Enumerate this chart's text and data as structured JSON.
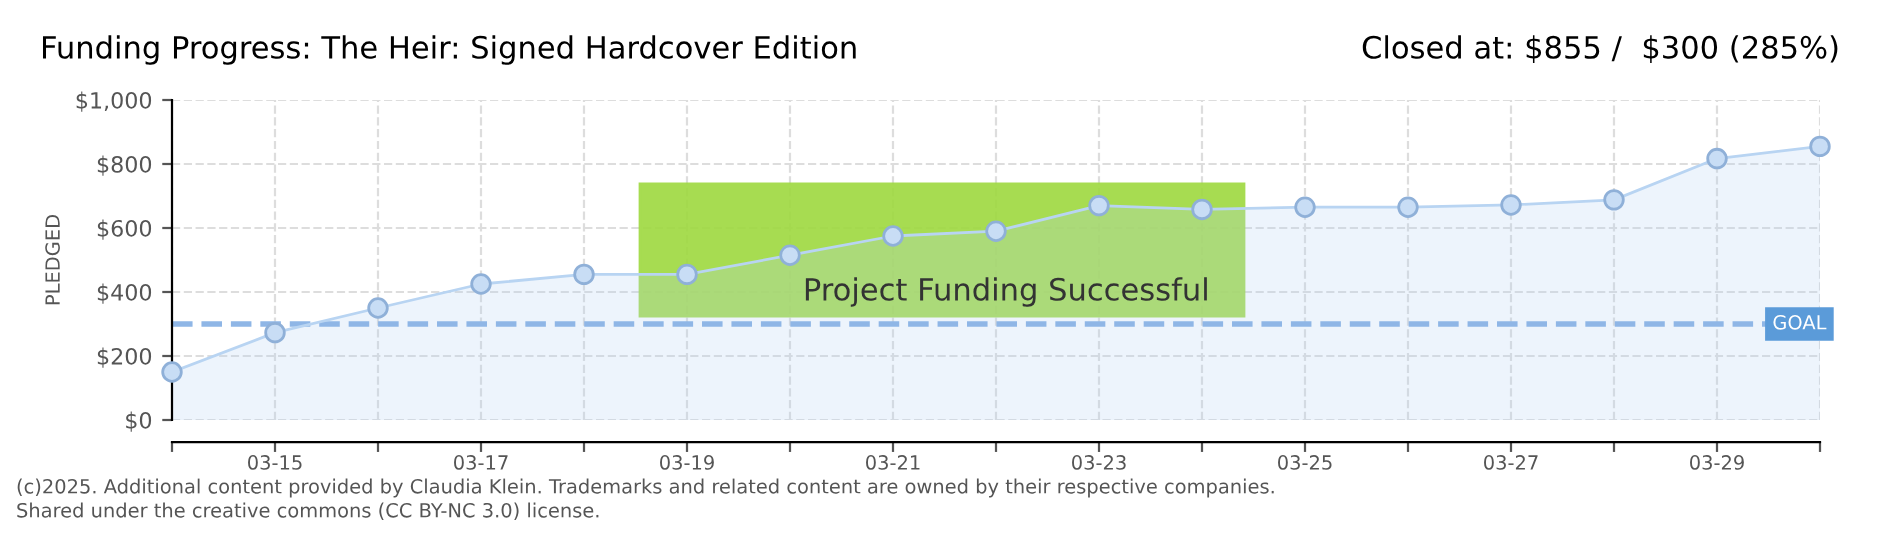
{
  "chart_data": {
    "type": "area",
    "title": "Funding Progress: The Heir: Signed Hardcover Edition",
    "subtitle": "Closed at: $855 /  $300 (285%)",
    "ylabel": "PLEDGED",
    "categories": [
      null,
      "03-15",
      null,
      "03-17",
      null,
      "03-19",
      null,
      "03-21",
      null,
      "03-23",
      null,
      "03-25",
      null,
      "03-27",
      null,
      "03-29",
      null
    ],
    "series": [
      {
        "color": "#b8d4f2",
        "values": [
          150,
          273,
          350,
          425,
          455,
          455,
          515,
          575,
          590,
          670,
          658,
          665,
          665,
          672,
          688,
          817,
          855
        ]
      }
    ],
    "ylim": [
      0,
      1000
    ],
    "yticks": [
      {
        "value": 0,
        "label": "$0"
      },
      {
        "value": 200,
        "label": "$200"
      },
      {
        "value": 400,
        "label": "$400"
      },
      {
        "value": 600,
        "label": "$600"
      },
      {
        "value": 800,
        "label": "$800"
      },
      {
        "value": 1000,
        "label": "$1,000"
      }
    ],
    "grid": true,
    "marker": "circle",
    "line_style": "solid",
    "legend": false,
    "ref_lines": [
      {
        "axis": "y",
        "value": 300,
        "label": "GOAL",
        "color": "#8fb6e6",
        "line_style": "dashed"
      }
    ],
    "annotations": [
      "Project Funding Successful",
      "(c)2025. Additional content provided by Claudia Klein. Trademarks and related content are owned by their respective companies.",
      "Shared under the creative commons (CC BY-NC 3.0) license."
    ]
  }
}
